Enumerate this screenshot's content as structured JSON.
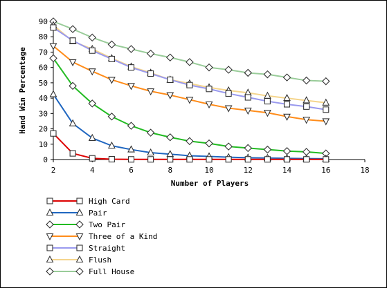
{
  "chart_data": {
    "type": "line",
    "title": "",
    "xlabel": "Number of Players",
    "ylabel": "Hand Win Percentage",
    "xlim": [
      2,
      18
    ],
    "ylim": [
      0,
      90
    ],
    "x_ticks": [
      2,
      4,
      6,
      8,
      10,
      12,
      14,
      16,
      18
    ],
    "y_ticks": [
      0,
      10,
      20,
      30,
      40,
      50,
      60,
      70,
      80,
      90
    ],
    "grid": false,
    "legend_position": "bottom-left",
    "x": [
      2,
      3,
      4,
      5,
      6,
      7,
      8,
      9,
      10,
      11,
      12,
      13,
      14,
      15,
      16
    ],
    "series": [
      {
        "name": "High Card",
        "color": "#dd0000",
        "marker": "square",
        "values": [
          17,
          4,
          0.8,
          0.2,
          0.1,
          0.1,
          0.1,
          0.1,
          0.1,
          0.1,
          0.1,
          0.1,
          0.1,
          0.1,
          0.1
        ]
      },
      {
        "name": "Pair",
        "color": "#1f66c0",
        "marker": "triangle-up",
        "values": [
          42.5,
          23.5,
          14,
          9,
          6.5,
          4.5,
          3.5,
          2.5,
          2,
          1.5,
          1.2,
          1,
          0.8,
          0.6,
          0.5
        ]
      },
      {
        "name": "Two Pair",
        "color": "#22bb22",
        "marker": "diamond",
        "values": [
          66,
          48,
          36.5,
          28,
          22,
          17.5,
          14.5,
          12,
          10.5,
          8.5,
          7.5,
          6.5,
          5.5,
          5,
          4
        ]
      },
      {
        "name": "Three of a Kind",
        "color": "#ff8c1a",
        "marker": "triangle-down",
        "values": [
          74,
          63.5,
          57.5,
          52,
          48,
          44.5,
          42,
          39,
          36,
          33.5,
          32,
          30.5,
          28,
          26,
          25
        ]
      },
      {
        "name": "Straight",
        "color": "#9999ee",
        "marker": "square",
        "values": [
          86,
          77.5,
          71,
          65.5,
          60,
          56,
          52,
          48.5,
          46,
          43,
          40.5,
          38,
          36,
          34.5,
          32.5
        ]
      },
      {
        "name": "Flush",
        "color": "#f5d58c",
        "marker": "triangle-up",
        "values": [
          87.5,
          77,
          72,
          66,
          60.5,
          56.5,
          52,
          49.5,
          47,
          45,
          43.5,
          41.5,
          40,
          38.5,
          37
        ]
      },
      {
        "name": "Full House",
        "color": "#99cc99",
        "marker": "diamond",
        "values": [
          90,
          85,
          79.5,
          75,
          72,
          69,
          66.5,
          63.5,
          60,
          58.5,
          56.5,
          55.5,
          53.5,
          51.5,
          51
        ]
      }
    ]
  }
}
